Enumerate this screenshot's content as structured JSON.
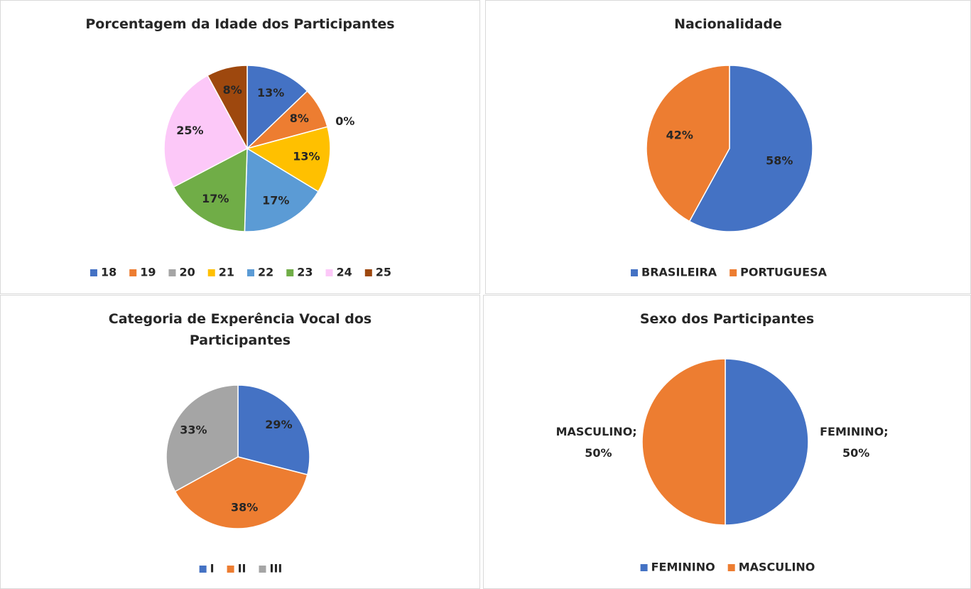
{
  "chart_data": [
    {
      "type": "pie",
      "title": "Porcentagem da Idade dos Participantes",
      "categories": [
        "18",
        "19",
        "20",
        "21",
        "22",
        "23",
        "24",
        "25"
      ],
      "values": [
        13,
        8,
        0,
        13,
        17,
        17,
        25,
        8
      ],
      "value_labels": [
        "13%",
        "8%",
        "0%",
        "13%",
        "17%",
        "17%",
        "25%",
        "8%"
      ],
      "colors": [
        "#4472c4",
        "#ed7d31",
        "#a5a5a5",
        "#ffc000",
        "#5b9bd5",
        "#70ad47",
        "#fcc8f8",
        "#9e480e"
      ],
      "legend": "bottom"
    },
    {
      "type": "pie",
      "title": "Nacionalidade",
      "categories": [
        "BRASILEIRA",
        "PORTUGUESA"
      ],
      "values": [
        58,
        42
      ],
      "value_labels": [
        "58%",
        "42%"
      ],
      "colors": [
        "#4472c4",
        "#ed7d31"
      ],
      "legend": "bottom"
    },
    {
      "type": "pie",
      "title": "Categoria de Experência Vocal dos Participantes",
      "categories": [
        "I",
        "II",
        "III"
      ],
      "values": [
        29,
        38,
        33
      ],
      "value_labels": [
        "29%",
        "38%",
        "33%"
      ],
      "colors": [
        "#4472c4",
        "#ed7d31",
        "#a5a5a5"
      ],
      "legend": "bottom"
    },
    {
      "type": "pie",
      "title": "Sexo dos Participantes",
      "categories": [
        "FEMININO",
        "MASCULINO"
      ],
      "values": [
        50,
        50
      ],
      "value_labels": [
        "FEMININO; 50%",
        "MASCULINO; 50%"
      ],
      "colors": [
        "#4472c4",
        "#ed7d31"
      ],
      "legend": "bottom"
    }
  ]
}
